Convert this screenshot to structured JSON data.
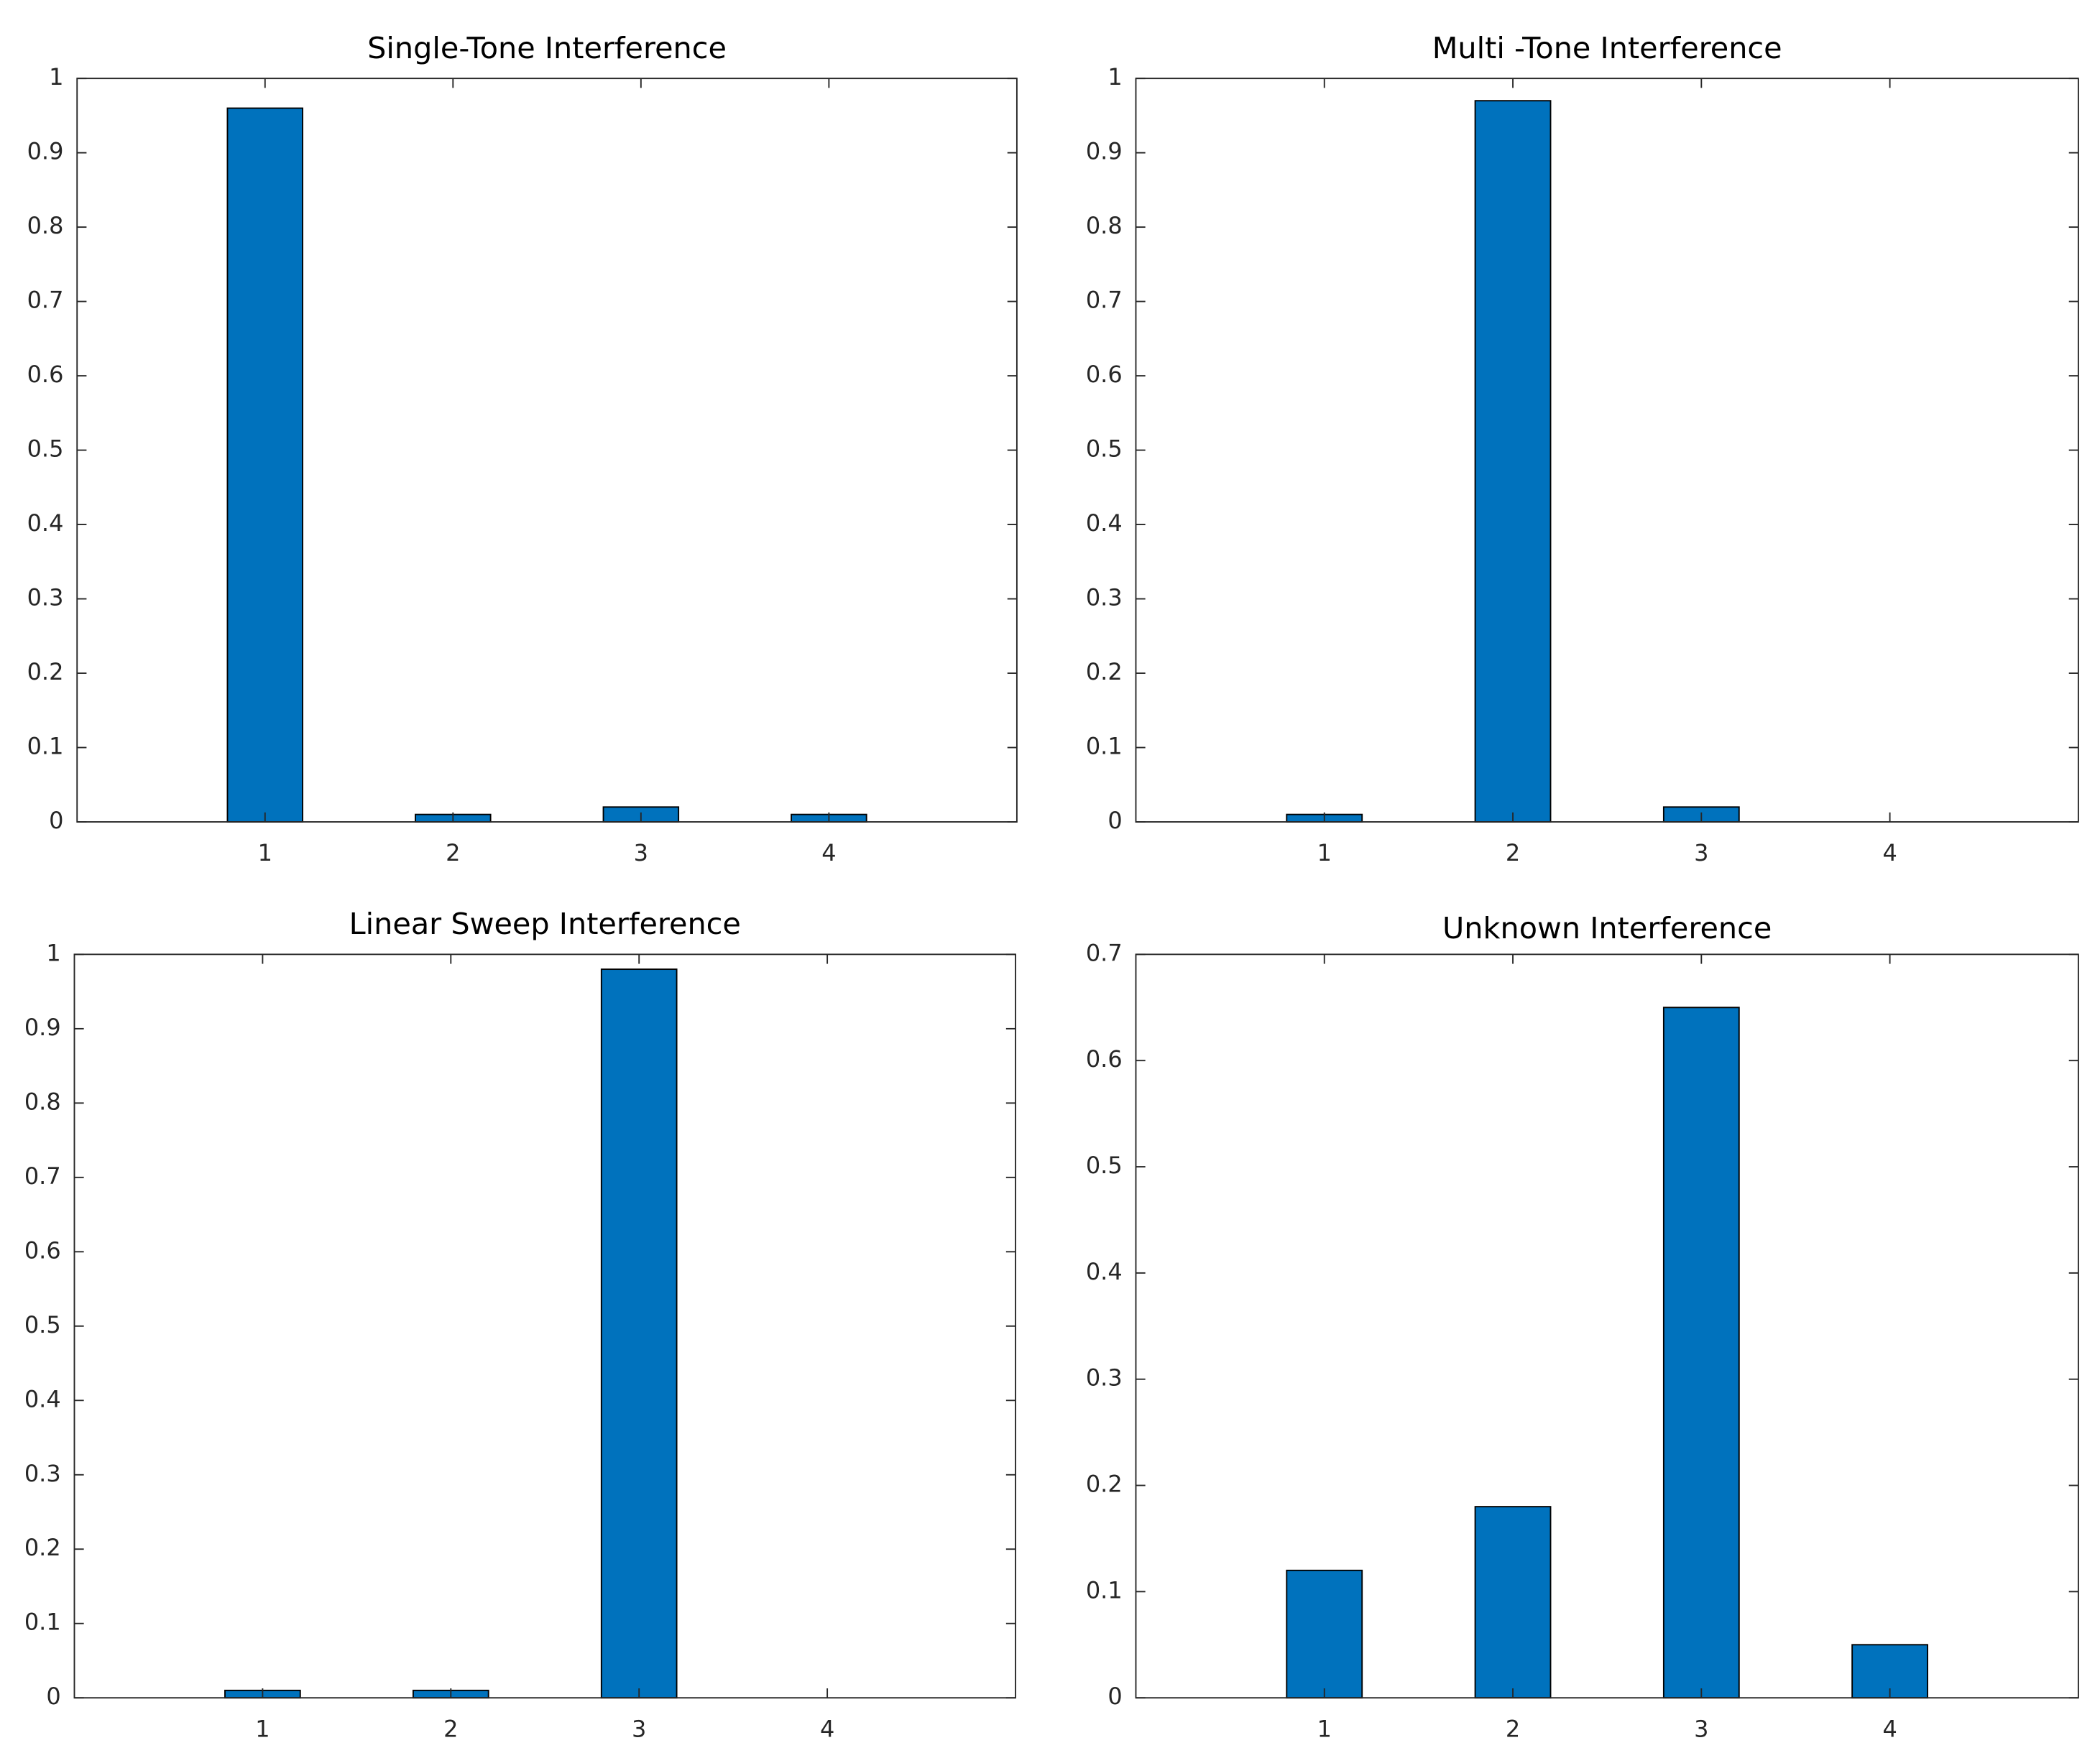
{
  "chart_data": [
    {
      "type": "bar",
      "title": "Single-Tone Interference",
      "x": [
        1,
        2,
        3,
        4
      ],
      "values": [
        0.96,
        0.01,
        0.02,
        0.01
      ],
      "color": "#0072bd",
      "xlim": [
        0,
        5
      ],
      "xticks": [
        1,
        2,
        3,
        4
      ],
      "ylim": [
        0,
        1
      ],
      "yticks": [
        0,
        0.1,
        0.2,
        0.3,
        0.4,
        0.5,
        0.6,
        0.7,
        0.8,
        0.9,
        1
      ]
    },
    {
      "type": "bar",
      "title": "Multi -Tone Interference",
      "x": [
        1,
        2,
        3,
        4
      ],
      "values": [
        0.01,
        0.97,
        0.02,
        0
      ],
      "color": "#0072bd",
      "xlim": [
        0,
        5
      ],
      "xticks": [
        1,
        2,
        3,
        4
      ],
      "ylim": [
        0,
        1
      ],
      "yticks": [
        0,
        0.1,
        0.2,
        0.3,
        0.4,
        0.5,
        0.6,
        0.7,
        0.8,
        0.9,
        1
      ]
    },
    {
      "type": "bar",
      "title": "Linear Sweep Interference",
      "x": [
        1,
        2,
        3,
        4
      ],
      "values": [
        0.01,
        0.01,
        0.98,
        0
      ],
      "color": "#0072bd",
      "xlim": [
        0,
        5
      ],
      "xticks": [
        1,
        2,
        3,
        4
      ],
      "ylim": [
        0,
        1
      ],
      "yticks": [
        0,
        0.1,
        0.2,
        0.3,
        0.4,
        0.5,
        0.6,
        0.7,
        0.8,
        0.9,
        1
      ]
    },
    {
      "type": "bar",
      "title": "Unknown Interference",
      "x": [
        1,
        2,
        3,
        4
      ],
      "values": [
        0.12,
        0.18,
        0.65,
        0.05
      ],
      "color": "#0072bd",
      "xlim": [
        0,
        5
      ],
      "xticks": [
        1,
        2,
        3,
        4
      ],
      "ylim": [
        0,
        0.7
      ],
      "yticks": [
        0,
        0.1,
        0.2,
        0.3,
        0.4,
        0.5,
        0.6,
        0.7
      ]
    }
  ]
}
